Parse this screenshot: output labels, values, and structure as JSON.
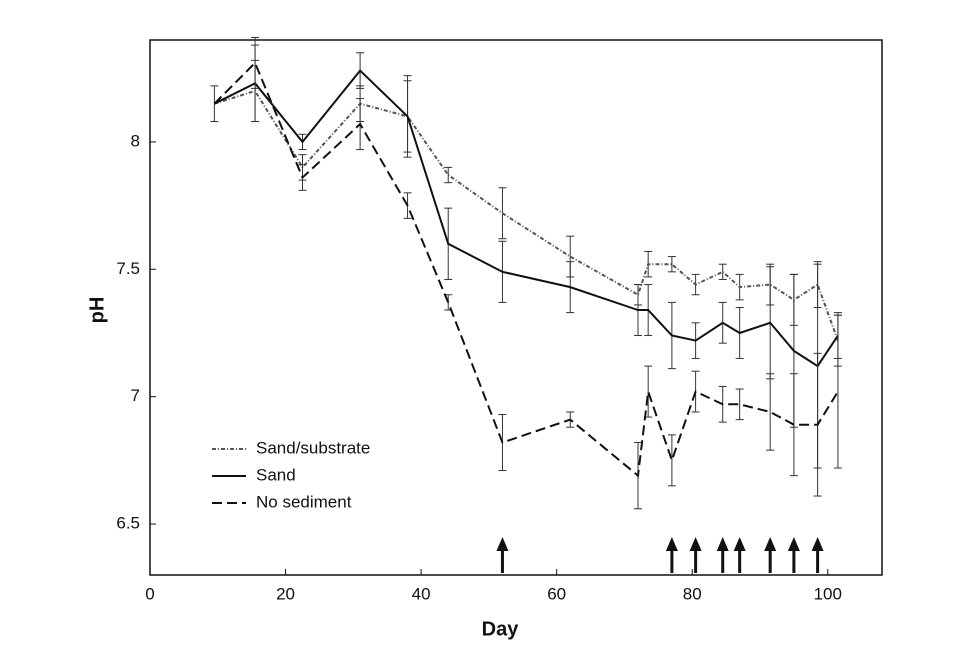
{
  "chart_data": {
    "type": "line",
    "x_label": "Day",
    "y_label": "pH",
    "xlim": [
      0,
      108
    ],
    "xticks": [
      0,
      20,
      40,
      60,
      80,
      100
    ],
    "ylim": [
      6.3,
      8.4
    ],
    "yticks": [
      6.5,
      7,
      7.5,
      8
    ],
    "x": [
      9.5,
      15.5,
      22.5,
      31,
      38,
      44,
      52,
      62,
      72,
      73.5,
      77,
      80.5,
      84.5,
      87,
      91.5,
      95,
      98.5,
      101.5
    ],
    "series": [
      {
        "name": "Sand/substrate",
        "color": "#555555",
        "dash": "4 2 1 2",
        "values": [
          8.15,
          8.2,
          7.9,
          8.15,
          8.1,
          7.87,
          7.72,
          7.55,
          7.4,
          7.52,
          7.52,
          7.44,
          7.49,
          7.43,
          7.44,
          7.38,
          7.44,
          7.22
        ],
        "errors": [
          0.07,
          0.12,
          0.05,
          0.07,
          0.14,
          0.03,
          0.1,
          0.08,
          0.04,
          0.05,
          0.03,
          0.04,
          0.03,
          0.05,
          0.08,
          0.1,
          0.09,
          0.1
        ]
      },
      {
        "name": "Sand",
        "color": "#111111",
        "dash": "",
        "values": [
          8.15,
          8.23,
          8.0,
          8.28,
          8.1,
          7.6,
          7.49,
          7.43,
          7.34,
          7.34,
          7.24,
          7.22,
          7.29,
          7.25,
          7.29,
          7.18,
          7.12,
          7.24
        ],
        "errors": [
          null,
          0.15,
          0.03,
          0.07,
          0.16,
          0.14,
          0.12,
          0.1,
          0.1,
          0.1,
          0.13,
          0.07,
          0.08,
          0.1,
          0.22,
          0.3,
          0.4,
          0.09
        ]
      },
      {
        "name": "No sediment",
        "color": "#111111",
        "dash": "10 5",
        "values": [
          8.15,
          8.31,
          7.86,
          8.07,
          7.75,
          7.37,
          6.82,
          6.91,
          6.69,
          7.02,
          6.75,
          7.02,
          6.97,
          6.97,
          6.94,
          6.89,
          6.89,
          7.02
        ],
        "errors": [
          null,
          0.1,
          0.05,
          0.1,
          0.05,
          0.03,
          0.11,
          0.03,
          0.13,
          0.1,
          0.1,
          0.08,
          0.07,
          0.06,
          0.15,
          0.2,
          0.28,
          0.3
        ]
      }
    ],
    "arrows_x": [
      52,
      77,
      80.5,
      84.5,
      87,
      91.5,
      95,
      98.5
    ],
    "legend": "lower left"
  }
}
